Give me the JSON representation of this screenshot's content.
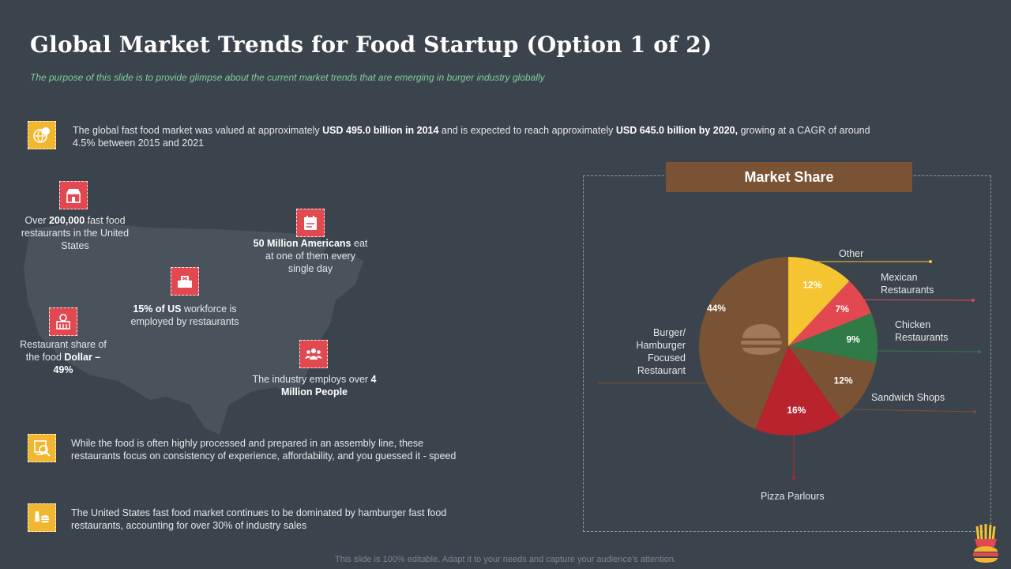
{
  "header": {
    "title": "Global Market Trends for Food Startup (Option 1 of 2)",
    "subtitle": "The purpose of this slide is to provide glimpse about the current market trends that are emerging in burger industry globally"
  },
  "points": [
    {
      "icon": "globe-food-icon",
      "parts": [
        {
          "t": "The global fast food market was valued at approximately "
        },
        {
          "t": "USD 495.0 billion in 2014",
          "b": true
        },
        {
          "t": " and is expected to reach approximately "
        },
        {
          "t": "USD 645.0 billion by 2020,",
          "b": true
        },
        {
          "t": " growing at a CAGR of around 4.5% between 2015 and 2021"
        }
      ]
    },
    {
      "icon": "food-search-icon",
      "parts": [
        {
          "t": "While the food is often highly processed and prepared in an assembly line, these restaurants focus on consistency of experience, affordability, and you guessed it - speed"
        }
      ]
    },
    {
      "icon": "burger-fries-icon",
      "parts": [
        {
          "t": "The United States fast food market continues to be dominated by hamburger fast food restaurants, accounting for over 30% of industry sales"
        }
      ]
    }
  ],
  "stats": [
    {
      "icon": "restaurant-icon",
      "parts": [
        {
          "t": "Over "
        },
        {
          "t": "200,000",
          "b": true
        },
        {
          "t": " fast food restaurants in the United States"
        }
      ]
    },
    {
      "icon": "calendar-icon",
      "parts": [
        {
          "t": "50 Million Americans",
          "b": true
        },
        {
          "t": " eat at one of them every single day"
        }
      ]
    },
    {
      "icon": "workforce-icon",
      "parts": [
        {
          "t": "15% of US",
          "b": true
        },
        {
          "t": " workforce is employed by restaurants"
        }
      ]
    },
    {
      "icon": "store-icon",
      "parts": [
        {
          "t": "Restaurant share of the food "
        },
        {
          "t": "Dollar – 49%",
          "b": true
        }
      ]
    },
    {
      "icon": "people-icon",
      "parts": [
        {
          "t": "The industry employs over "
        },
        {
          "t": "4 Million People",
          "b": true
        }
      ]
    }
  ],
  "market_title": "Market Share",
  "chart_data": {
    "type": "pie",
    "title": "Market Share",
    "slices": [
      {
        "label": "Other",
        "value": 12,
        "value_label": "12%",
        "color": "#f5c431"
      },
      {
        "label": "Mexican Restaurants",
        "value": 7,
        "value_label": "7%",
        "color": "#e2484f"
      },
      {
        "label": "Chicken Restaurants",
        "value": 9,
        "value_label": "9%",
        "color": "#2f7a46"
      },
      {
        "label": "Sandwich Shops",
        "value": 12,
        "value_label": "12%",
        "color": "#7a5234"
      },
      {
        "label": "Pizza Parlours",
        "value": 16,
        "value_label": "16%",
        "color": "#b8232d"
      },
      {
        "label": "Burger/ Hamburger Focused Restaurant",
        "value": 44,
        "value_label": "44%",
        "color": "#7a5234"
      }
    ]
  },
  "footer": "This slide is 100% editable. Adapt it to your needs and capture your audience's attention.",
  "colors": {
    "background": "#3b444d",
    "accent_yellow": "#f2b731",
    "accent_red": "#e2484f",
    "subtitle_green": "#7fcf9a"
  }
}
